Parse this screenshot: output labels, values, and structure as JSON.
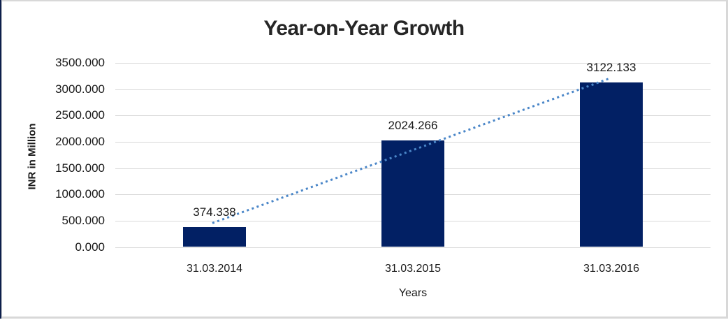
{
  "frame": {
    "border_color": "#d8d8d8",
    "left_accent_color": "#0d1f4c",
    "background": "#ffffff"
  },
  "chart_data": {
    "type": "bar",
    "title": "Year-on-Year Growth",
    "xlabel": "Years",
    "ylabel": "INR in Million",
    "categories": [
      "31.03.2014",
      "31.03.2015",
      "31.03.2016"
    ],
    "values": [
      374.338,
      2024.266,
      3122.133
    ],
    "data_labels": [
      "374.338",
      "2024.266",
      "3122.133"
    ],
    "ylim": [
      0,
      3500
    ],
    "ytick_step": 500,
    "ytick_labels": [
      "0.000",
      "500.000",
      "1000.000",
      "1500.000",
      "2000.000",
      "2500.000",
      "3000.000",
      "3500.000"
    ],
    "grid": true,
    "legend": false,
    "bar_color": "#022064",
    "label_color": "#1a1a1a",
    "gridline_color": "#d9d9d9",
    "trendline": {
      "style": "dotted",
      "color": "#4a86c8"
    }
  }
}
